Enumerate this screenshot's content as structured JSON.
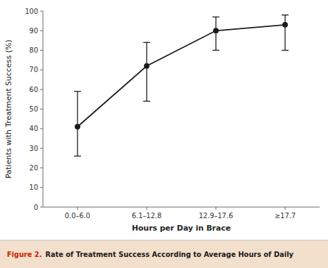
{
  "chart_data": {
    "type": "line",
    "categories": [
      "0.0–6.0",
      "6.1–12.8",
      "12.9–17.6",
      "≥17.7"
    ],
    "values": [
      41,
      72,
      90,
      93
    ],
    "error_lower": [
      15,
      18,
      10,
      13
    ],
    "error_upper": [
      18,
      12,
      7,
      5
    ],
    "color": "#1a1a1a",
    "marker": "circle",
    "x_label": "Hours per Day in Brace",
    "y_label": "Patients with Treatment Success (%)",
    "ylim": [
      0,
      100
    ],
    "yticks": [
      0,
      10,
      20,
      30,
      40,
      50,
      60,
      70,
      80,
      90,
      100
    ],
    "grid": false,
    "annotations": [
      {
        "text": "Figure 2.",
        "color": "#cc2200"
      },
      {
        "text": "Rate of Treatment Success According to Average Hours of Daily",
        "color": "#1a1a1a"
      }
    ]
  }
}
